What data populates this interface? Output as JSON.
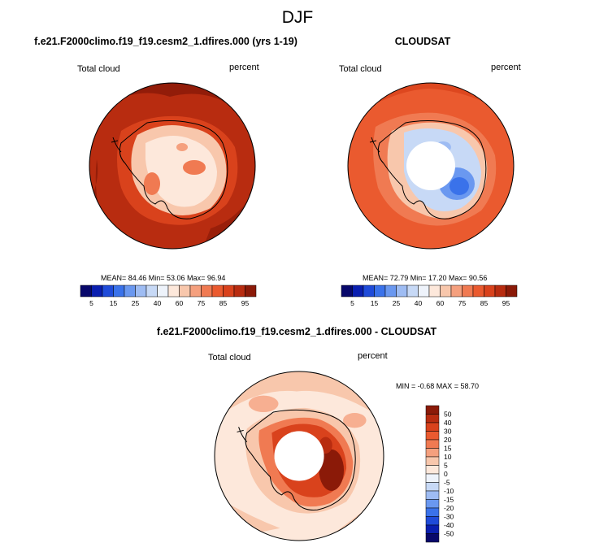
{
  "title": "DJF",
  "panels": [
    {
      "title": "f.e21.F2000climo.f19_f19.cesm2_1.dfires.000 (yrs 1-19)",
      "left_label": "Total cloud",
      "right_label": "percent",
      "stats": "MEAN=  84.46   Min=  53.06   Max=  96.94"
    },
    {
      "title": "CLOUDSAT",
      "left_label": "Total cloud",
      "right_label": "percent",
      "stats": "MEAN=  72.79   Min=  17.20   Max=  90.56"
    },
    {
      "title": "f.e21.F2000climo.f19_f19.cesm2_1.dfires.000 - CLOUDSAT",
      "left_label": "Total cloud",
      "right_label": "percent",
      "stats": "MIN =  -0.68 MAX =  58.70"
    }
  ],
  "colorbar_horizontal": {
    "colors": [
      "#08086b",
      "#0a1fb0",
      "#1f4bd9",
      "#3a72ea",
      "#6a98f0",
      "#9ebcf3",
      "#c7d9f6",
      "#eef3fb",
      "#fde8db",
      "#f8c7ac",
      "#f5a07e",
      "#f07a52",
      "#ea5a2f",
      "#d9421c",
      "#b82c10",
      "#8b1a08"
    ],
    "tick_labels": [
      "5",
      "15",
      "25",
      "40",
      "60",
      "75",
      "85",
      "95"
    ]
  },
  "colorbar_vertical": {
    "colors": [
      "#8b1a08",
      "#b82c10",
      "#d9421c",
      "#ea5a2f",
      "#f07a52",
      "#f5a07e",
      "#f8c7ac",
      "#fde8db",
      "#eef3fb",
      "#c7d9f6",
      "#9ebcf3",
      "#6a98f0",
      "#3a72ea",
      "#1f4bd9",
      "#0a1fb0",
      "#08086b"
    ],
    "tick_labels": [
      "50",
      "40",
      "30",
      "20",
      "15",
      "10",
      "5",
      "0",
      "-5",
      "-10",
      "-15",
      "-20",
      "-30",
      "-40",
      "-50"
    ]
  }
}
